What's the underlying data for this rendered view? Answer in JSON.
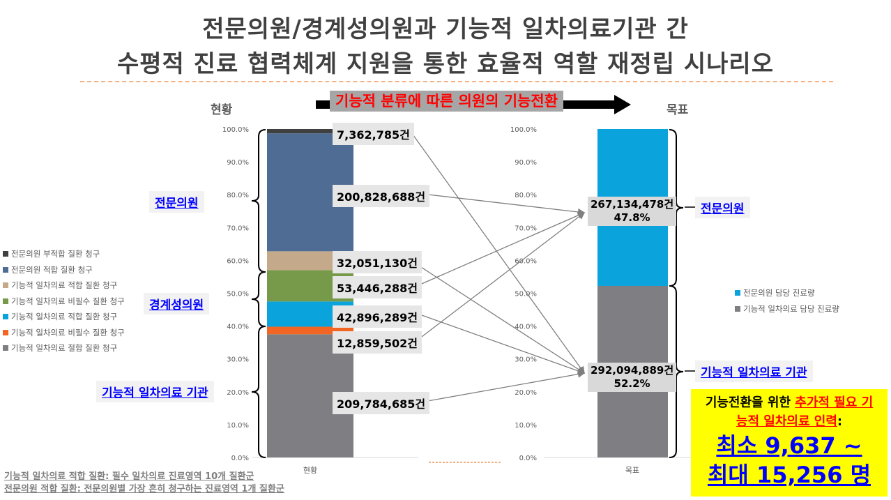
{
  "title": {
    "line1": "전문의원/경계성의원과 기능적 일차의료기관 간",
    "line2": "수평적 진료 협력체계 지원을 통한 효율적 역할 재정립 시나리오"
  },
  "banner": "기능적 분류에 따른 의원의 기능전환",
  "headers": {
    "current": "현황",
    "target": "목표"
  },
  "group_labels": {
    "specialist": "전문의원",
    "borderline": "경계성의원",
    "primary": "기능적 일차의료 기관",
    "specialist_right": "전문의원",
    "primary_right": "기능적 일차의료 기관"
  },
  "notes": [
    "기능적 일차의료 적합 질환: 필수 일차의료 진료영역 10개 질환군",
    "전문의원 적합 질환: 전문의원별 가장 흔히 청구하는 진료영역 1개 질환군"
  ],
  "callout": {
    "part1": "기능전환을 위한 ",
    "part2": "추가적 필요 기능적 일차의료 인력",
    "part3": ":",
    "line2": "최소 9,637 ~",
    "line3": "최대 15,256 명"
  },
  "chart_data": [
    {
      "type": "bar",
      "stacked": true,
      "category": "현황",
      "ylim": [
        0,
        100
      ],
      "yticks": [
        "0.0%",
        "10.0%",
        "20.0%",
        "30.0%",
        "40.0%",
        "50.0%",
        "60.0%",
        "70.0%",
        "80.0%",
        "90.0%",
        "100.0%"
      ],
      "series": [
        {
          "name": "기능적 일차의료 절합 질환 청구",
          "value": 209784685,
          "label": "209,784,685건",
          "color": "#7f7f83",
          "target": "primary"
        },
        {
          "name": "기능적 일차의료 비필수 질환 청구",
          "value": 12859502,
          "label": "12,859,502건",
          "color": "#f26522",
          "target": "specialist"
        },
        {
          "name": "기능적 일차의료 적합 질환 청구",
          "value": 42896289,
          "label": "42,896,289건",
          "color": "#0aa3dc",
          "target": "primary"
        },
        {
          "name": "기능적 일차의료 비필수 질환 청구",
          "value": 53446288,
          "label": "53,446,288건",
          "color": "#77994a",
          "target": "specialist"
        },
        {
          "name": "기능적 일차의료 적합 질환 청구",
          "value": 32051130,
          "label": "32,051,130건",
          "color": "#c4aa8a",
          "target": "primary"
        },
        {
          "name": "전문의원 적합 질환 청구",
          "value": 200828688,
          "label": "200,828,688건",
          "color": "#4e6c94",
          "target": "specialist"
        },
        {
          "name": "전문의원 부적합 질환 청구",
          "value": 7362785,
          "label": "7,362,785건",
          "color": "#404040",
          "target": "primary"
        }
      ]
    },
    {
      "type": "bar",
      "stacked": true,
      "category": "목표",
      "ylim": [
        0,
        100
      ],
      "series": [
        {
          "name": "기능적 일차의료 담당 진료량",
          "value": 292094889,
          "label": "292,094,889건",
          "pct": "52.2%",
          "color": "#7f7f83"
        },
        {
          "name": "전문의원 담당 진료량",
          "value": 267134478,
          "label": "267,134,478건",
          "pct": "47.8%",
          "color": "#0aa3dc"
        }
      ]
    }
  ]
}
